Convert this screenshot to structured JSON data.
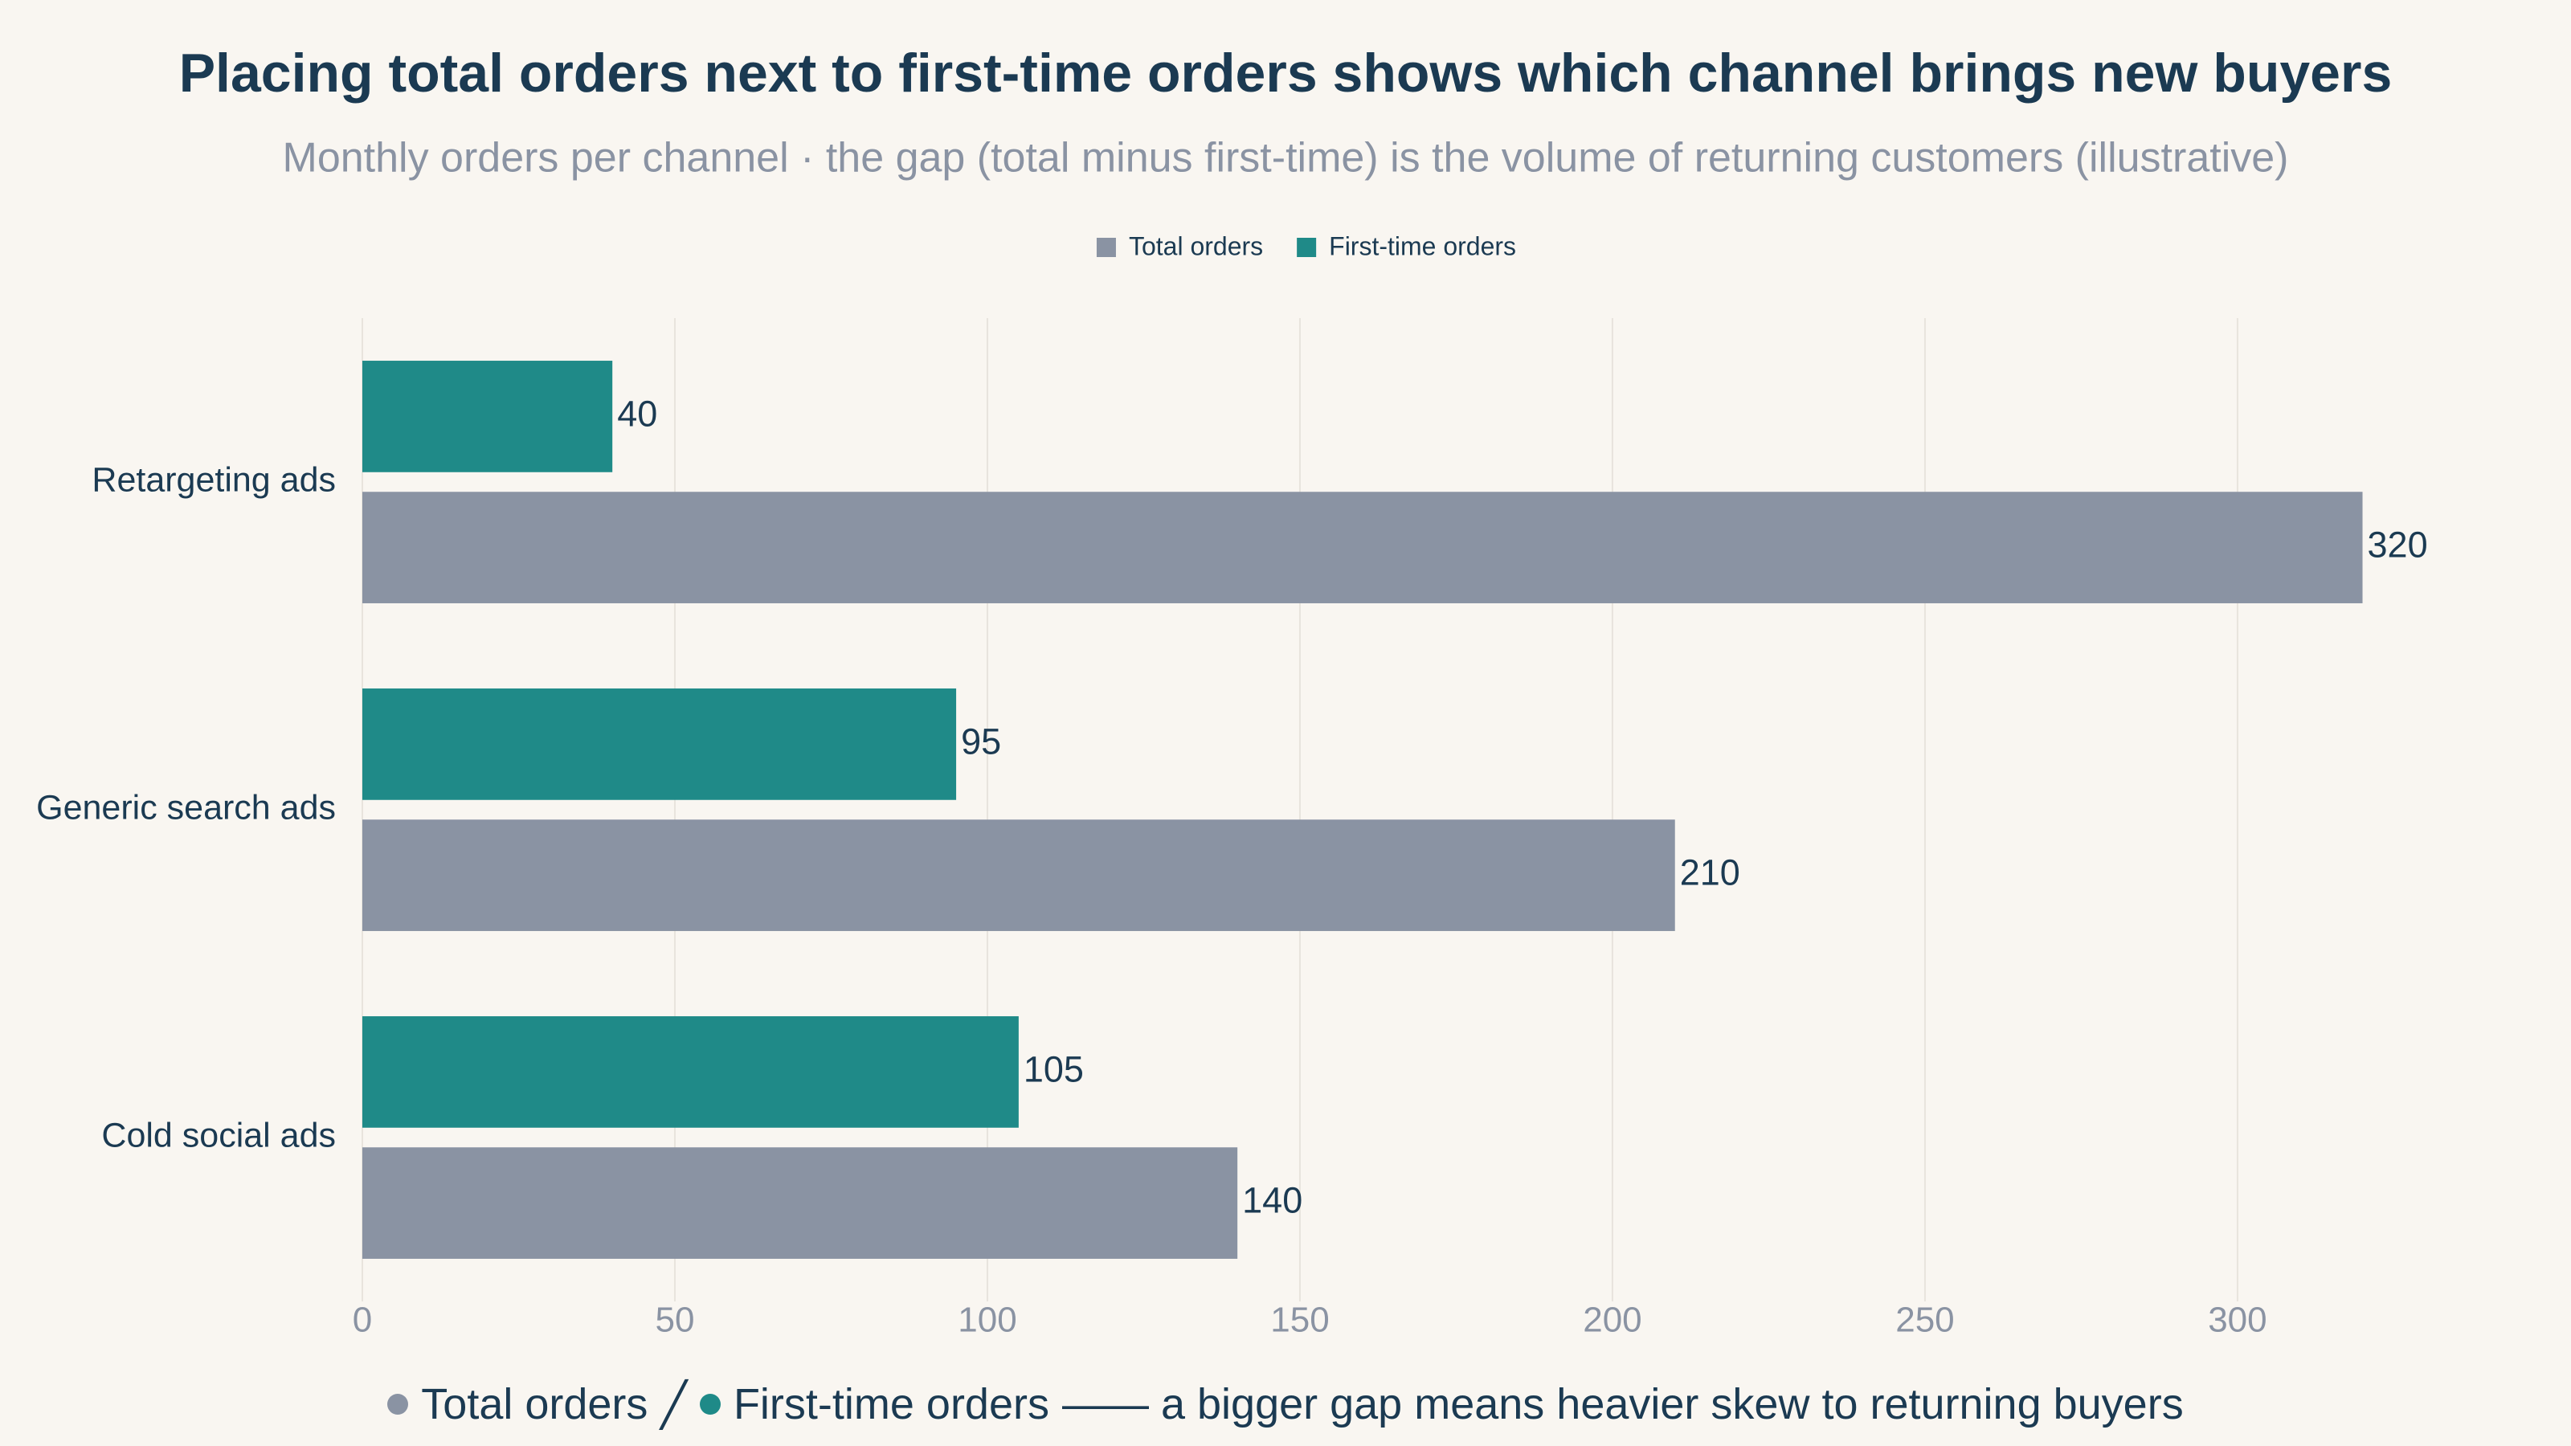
{
  "chart_data": {
    "type": "hbar",
    "title": "Placing total orders next to first-time orders shows which channel brings new buyers",
    "subtitle": "Monthly orders per channel · the gap (total minus first-time) is the volume of returning customers (illustrative)",
    "categories": [
      "Retargeting ads",
      "Generic search ads",
      "Cold social ads"
    ],
    "series": [
      {
        "name": "Total orders",
        "color": "#8a93a3",
        "values": [
          320,
          210,
          140
        ]
      },
      {
        "name": "First-time orders",
        "color": "#1f8a88",
        "values": [
          40,
          95,
          105
        ]
      }
    ],
    "xlim": [
      0,
      336
    ],
    "xticks": [
      0,
      50,
      100,
      150,
      200,
      250,
      300
    ],
    "grid": true,
    "legend": "top",
    "annotation": [
      "Total orders",
      "╱",
      "First-time orders",
      "—— a bigger gap means heavier skew to returning buyers"
    ]
  }
}
